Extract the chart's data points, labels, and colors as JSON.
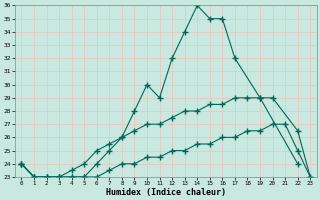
{
  "bg_color": "#c8e8e0",
  "grid_color": "#e8c8c0",
  "line_color": "#006858",
  "xlabel": "Humidex (Indice chaleur)",
  "ylim": [
    23,
    36
  ],
  "xlim": [
    -0.5,
    23.5
  ],
  "yticks": [
    23,
    24,
    25,
    26,
    27,
    28,
    29,
    30,
    31,
    32,
    33,
    34,
    35,
    36
  ],
  "xticks": [
    0,
    1,
    2,
    3,
    4,
    5,
    6,
    7,
    8,
    9,
    10,
    11,
    12,
    13,
    14,
    15,
    16,
    17,
    18,
    19,
    20,
    21,
    22,
    23
  ],
  "series1_x": [
    0,
    1,
    2,
    3,
    4,
    5,
    6,
    7,
    8,
    9,
    10,
    11,
    12,
    13,
    14,
    15,
    16,
    17,
    19,
    22
  ],
  "series1_y": [
    24,
    23,
    23,
    23,
    23,
    23,
    24,
    25,
    26,
    28,
    30,
    29,
    32,
    34,
    36,
    35,
    35,
    32,
    29,
    24
  ],
  "series2_x": [
    0,
    1,
    2,
    3,
    4,
    5,
    6,
    7,
    8,
    9,
    10,
    11,
    12,
    13,
    14,
    15,
    16,
    17,
    18,
    19,
    20,
    22,
    23
  ],
  "series2_y": [
    24,
    23,
    23,
    23,
    23.5,
    24,
    25,
    25.5,
    26,
    26.5,
    27,
    27,
    27.5,
    28,
    28,
    28.5,
    28.5,
    29,
    29,
    29,
    29,
    26.5,
    23
  ],
  "series3_x": [
    0,
    1,
    2,
    3,
    4,
    5,
    6,
    7,
    8,
    9,
    10,
    11,
    12,
    13,
    14,
    15,
    16,
    17,
    18,
    19,
    20,
    21,
    22,
    23
  ],
  "series3_y": [
    24,
    23,
    23,
    23,
    23,
    23,
    23,
    23.5,
    24,
    24,
    24.5,
    24.5,
    25,
    25,
    25.5,
    25.5,
    26,
    26,
    26.5,
    26.5,
    27,
    27,
    25,
    23
  ]
}
